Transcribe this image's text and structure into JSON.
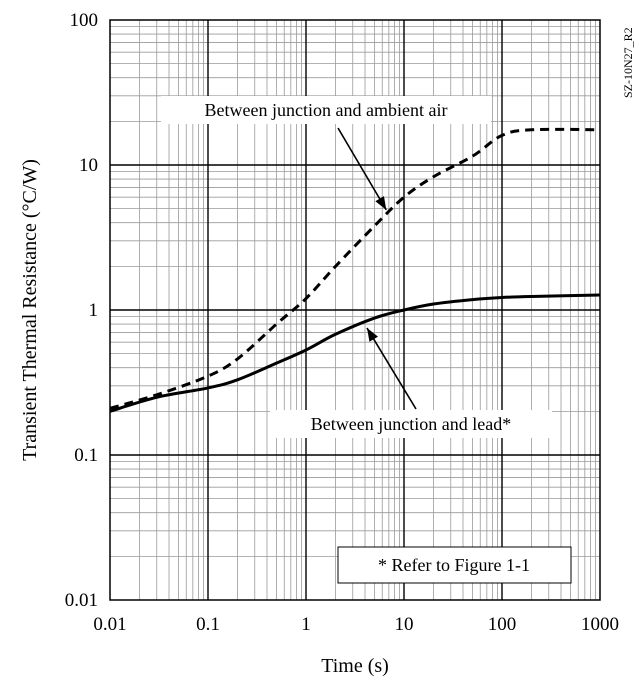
{
  "chart_data": {
    "type": "line",
    "xlabel": "Time (s)",
    "ylabel": "Transient Thermal Resistance (°C/W)",
    "xscale": "log",
    "yscale": "log",
    "xlim": [
      0.01,
      1000
    ],
    "ylim": [
      0.01,
      100
    ],
    "x_tick_labels": [
      "0.01",
      "0.1",
      "1",
      "10",
      "100",
      "1000"
    ],
    "y_tick_labels": [
      "0.01",
      "0.1",
      "1",
      "10",
      "100"
    ],
    "grid": true,
    "series": [
      {
        "name": "Between junction and ambient air",
        "style": "dashed",
        "color": "#000000",
        "points": [
          [
            0.01,
            0.21
          ],
          [
            0.03,
            0.26
          ],
          [
            0.1,
            0.35
          ],
          [
            0.2,
            0.46
          ],
          [
            0.5,
            0.8
          ],
          [
            1,
            1.2
          ],
          [
            2,
            2.0
          ],
          [
            5,
            3.8
          ],
          [
            10,
            6.0
          ],
          [
            20,
            8.3
          ],
          [
            50,
            11.5
          ],
          [
            100,
            16.0
          ],
          [
            200,
            17.5
          ],
          [
            1000,
            17.5
          ]
        ]
      },
      {
        "name": "Between junction and lead*",
        "style": "solid",
        "color": "#000000",
        "points": [
          [
            0.01,
            0.2
          ],
          [
            0.03,
            0.25
          ],
          [
            0.1,
            0.29
          ],
          [
            0.2,
            0.33
          ],
          [
            0.5,
            0.43
          ],
          [
            1,
            0.53
          ],
          [
            2,
            0.68
          ],
          [
            5,
            0.88
          ],
          [
            10,
            1.0
          ],
          [
            20,
            1.1
          ],
          [
            50,
            1.18
          ],
          [
            100,
            1.22
          ],
          [
            200,
            1.24
          ],
          [
            1000,
            1.27
          ]
        ]
      }
    ],
    "annotations": [
      {
        "text": "Between junction and ambient air",
        "points_to_x": 6
      },
      {
        "text": "Between junction and lead*",
        "points_to_x": 4
      },
      {
        "text": "* Refer to Figure 1-1"
      }
    ],
    "figure_code": "SZ-10N27_R2"
  }
}
